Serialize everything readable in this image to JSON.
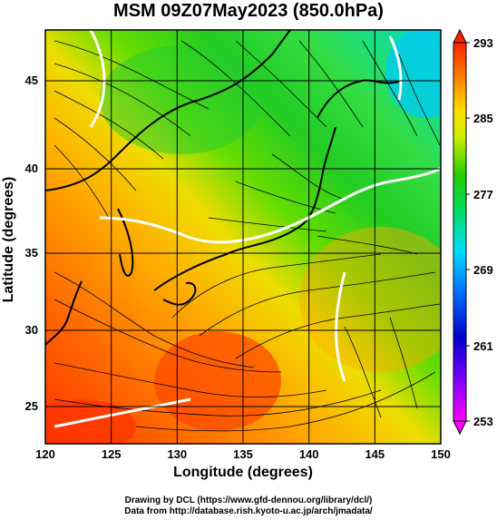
{
  "title": "MSM 09Z07May2023 (850.0hPa)",
  "xlabel": "Longitude (degrees)",
  "ylabel": "Latitude  (degrees)",
  "x_ticks": [
    "120",
    "125",
    "130",
    "135",
    "140",
    "145",
    "150"
  ],
  "y_ticks": [
    "45",
    "40",
    "35",
    "30",
    "25"
  ],
  "colorbar_ticks": [
    "293",
    "285",
    "277",
    "269",
    "261",
    "253"
  ],
  "footer_line1": "Drawing by DCL (https://www.gfd-dennou.org/library/dcl/)",
  "footer_line2": "Data from http://database.rish.kyoto-u.ac.jp/arch/jmadata/",
  "map_data": {
    "lon_range": [
      120,
      150
    ],
    "lat_range": [
      22.4,
      47.6
    ],
    "colorbar_range": [
      253,
      293
    ],
    "colormap": [
      "#ff00ff",
      "#9900ff",
      "#0000cc",
      "#0066ff",
      "#00ccff",
      "#00e0a0",
      "#00cc33",
      "#66dd00",
      "#ccee00",
      "#ffee00",
      "#ffaa00",
      "#ff6600",
      "#ff2200"
    ],
    "contour_color": "#ffffff",
    "streamline_color": "#000000"
  }
}
